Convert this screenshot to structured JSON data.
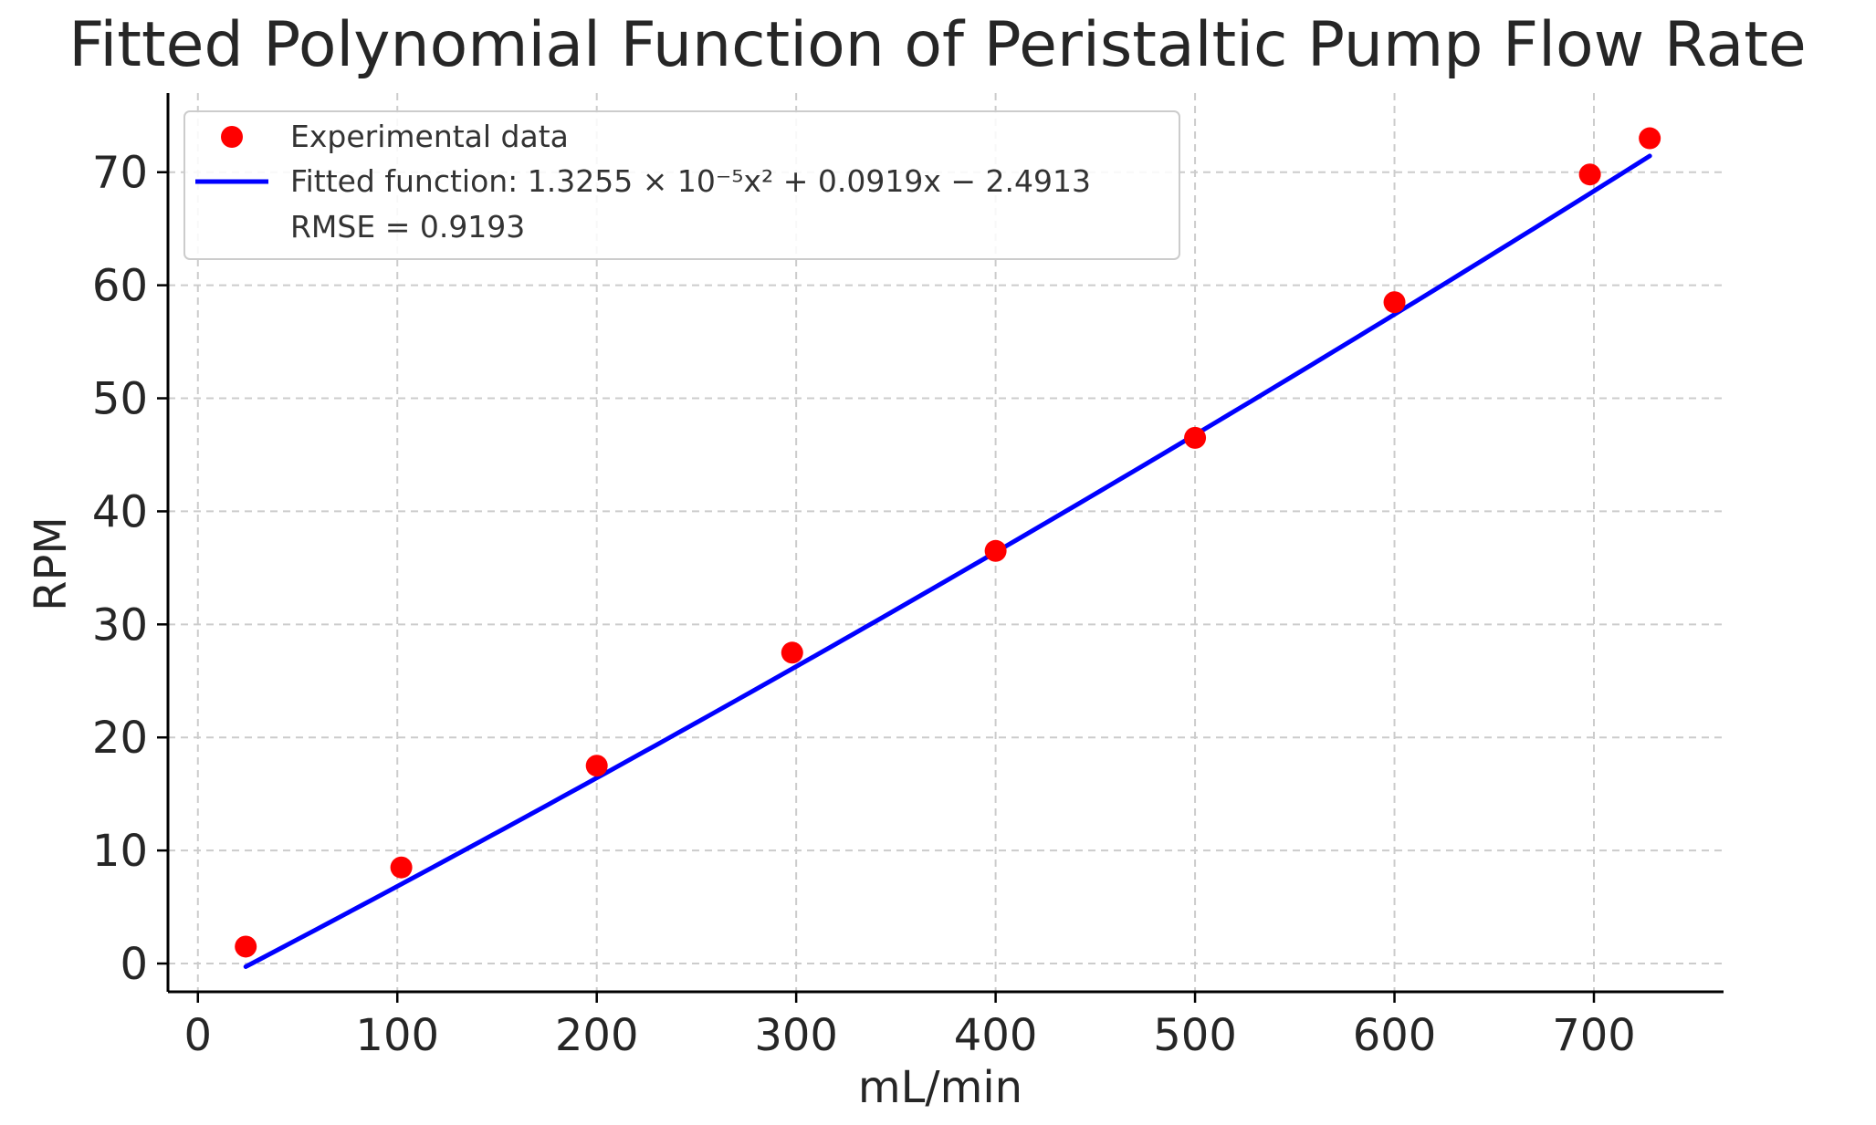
{
  "chart_data": {
    "type": "scatter",
    "title": "Fitted Polynomial Function of Peristaltic Pump Flow Rate",
    "xlabel": "mL/min",
    "ylabel": "RPM",
    "xlim": [
      -15,
      765
    ],
    "ylim": [
      -2.5,
      77
    ],
    "xticks": [
      0,
      100,
      200,
      300,
      400,
      500,
      600,
      700
    ],
    "yticks": [
      0,
      10,
      20,
      30,
      40,
      50,
      60,
      70
    ],
    "grid": true,
    "legend_position": "top-left",
    "colors": {
      "points": "#ff0000",
      "line": "#0000ff",
      "grid": "#cccccc",
      "axis": "#000000",
      "text": "#262626"
    },
    "series": [
      {
        "name": "Experimental data",
        "kind": "scatter",
        "x": [
          24,
          102,
          200,
          298,
          400,
          500,
          600,
          698,
          728
        ],
        "y": [
          1.5,
          8.5,
          17.5,
          27.5,
          36.5,
          46.5,
          58.5,
          69.8,
          73
        ]
      },
      {
        "name": "Fitted function: 1.3255 × 10⁻⁵x² + 0.0919x − 2.4913",
        "kind": "line",
        "coefficients": {
          "a": 1.3255e-05,
          "b": 0.0919,
          "c": -2.4913
        },
        "x_range": [
          24,
          728
        ]
      }
    ],
    "legend_entries": [
      "Experimental data",
      "Fitted function: 1.3255 × 10⁻⁵x² + 0.0919x − 2.4913",
      "RMSE = 0.9193"
    ],
    "annotation": "RMSE = 0.9193"
  }
}
